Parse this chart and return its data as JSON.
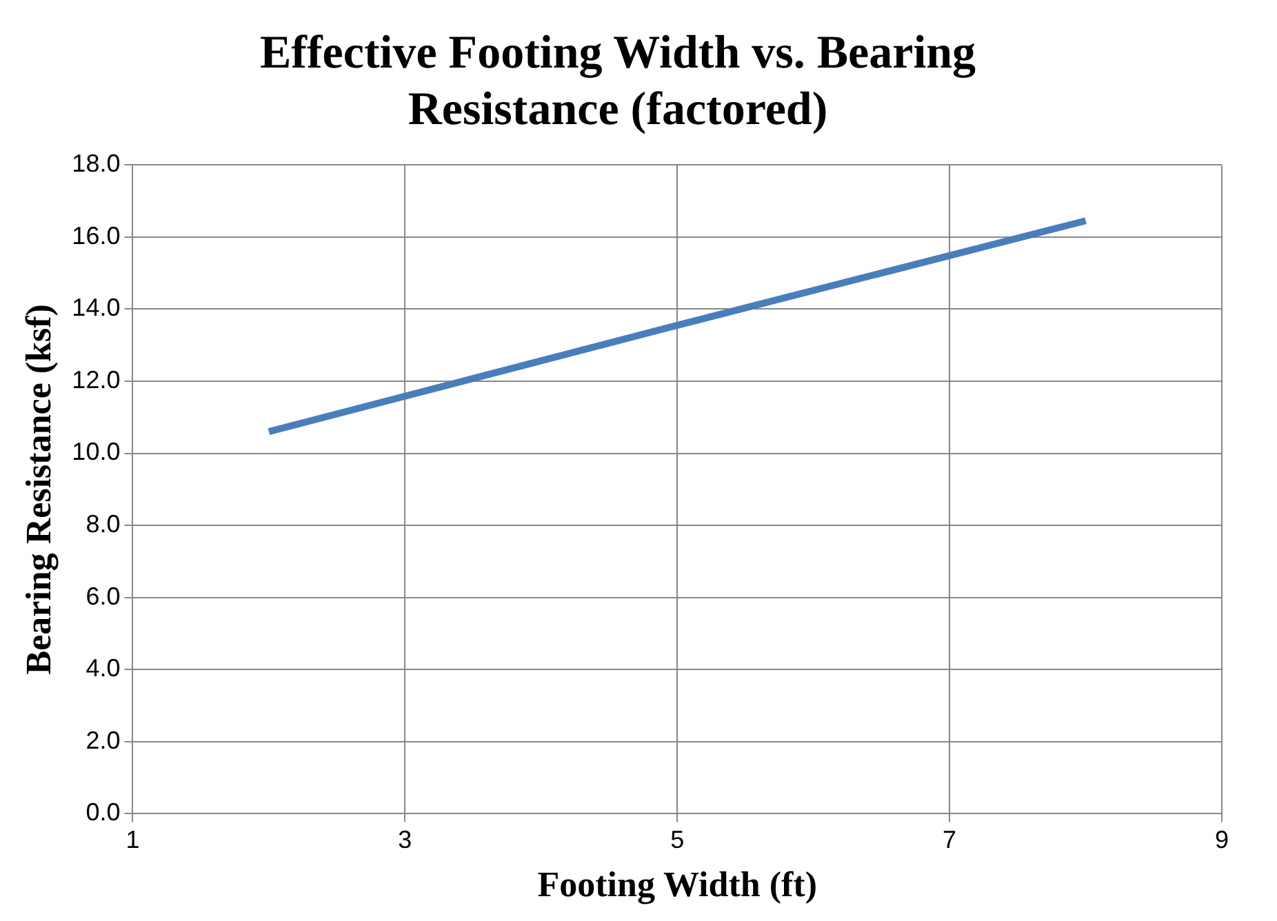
{
  "chart_data": {
    "type": "line",
    "title": "Effective Footing Width vs. Bearing Resistance (factored)",
    "xlabel": "Footing Width (ft)",
    "ylabel": "Bearing Resistance (ksf)",
    "x": [
      2,
      5,
      8
    ],
    "series": [
      {
        "color": "#4a7ebb",
        "values": [
          10.6,
          13.55,
          16.45
        ]
      }
    ],
    "xlim": [
      1,
      9
    ],
    "xticks": [
      1,
      3,
      5,
      7,
      9
    ],
    "ylim": [
      0,
      18
    ],
    "yticks": [
      {
        "value": 0,
        "label": "0.0"
      },
      {
        "value": 2,
        "label": "2.0"
      },
      {
        "value": 4,
        "label": "4.0"
      },
      {
        "value": 6,
        "label": "6.0"
      },
      {
        "value": 8,
        "label": "8.0"
      },
      {
        "value": 10,
        "label": "10.0"
      },
      {
        "value": 12,
        "label": "12.0"
      },
      {
        "value": 14,
        "label": "14.0"
      },
      {
        "value": 16,
        "label": "16.0"
      },
      {
        "value": 18,
        "label": "18.0"
      }
    ],
    "grid": true,
    "legend": false,
    "marker": "none",
    "line_style": "solid"
  }
}
